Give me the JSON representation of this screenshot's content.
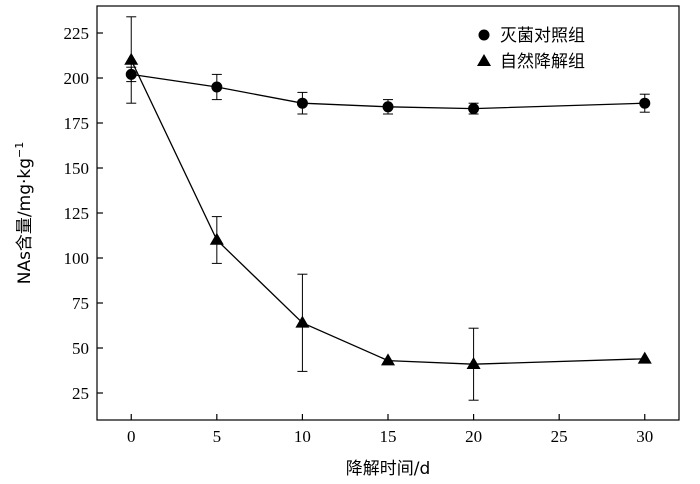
{
  "chart_data": {
    "type": "line",
    "xlabel": "降解时间/d",
    "ylabel": "NAs含量/mg·kg",
    "ylabel_sup": "−1",
    "xlim": [
      -2,
      32
    ],
    "ylim": [
      10,
      240
    ],
    "xticks": [
      0,
      5,
      10,
      15,
      20,
      25,
      30
    ],
    "yticks": [
      25,
      50,
      75,
      100,
      125,
      150,
      175,
      200,
      225
    ],
    "grid": false,
    "legend_position": "top-right",
    "series": [
      {
        "name": "灭菌对照组",
        "marker": "circle",
        "x": [
          0,
          5,
          10,
          15,
          20,
          30
        ],
        "values": [
          202,
          195,
          186,
          184,
          183,
          186
        ],
        "errors": [
          4,
          7,
          6,
          4,
          3,
          5
        ]
      },
      {
        "name": "自然降解组",
        "marker": "triangle",
        "x": [
          0,
          5,
          10,
          15,
          20,
          30
        ],
        "values": [
          210,
          110,
          64,
          43,
          41,
          44
        ],
        "errors": [
          24,
          13,
          27,
          0,
          20,
          0
        ]
      }
    ]
  }
}
